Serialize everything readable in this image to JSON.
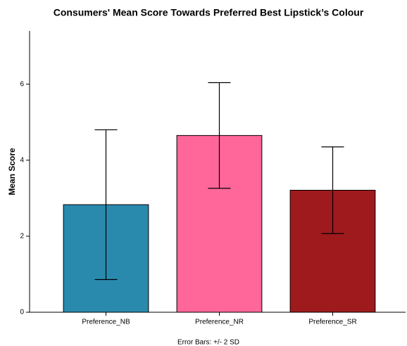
{
  "chart_data": {
    "type": "bar",
    "title": "Consumers' Mean Score Towards Preferred Best Lipstick’s Colour",
    "y_label": "Mean Score",
    "note": "Error Bars: +/- 2 SD",
    "categories": [
      "Preference_NB",
      "Preference_NR",
      "Preference_SR"
    ],
    "values": [
      2.83,
      4.65,
      3.21
    ],
    "errors": [
      1.97,
      1.39,
      1.14
    ],
    "colors": [
      "#2a8aad",
      "#ff6699",
      "#9e1a1d"
    ],
    "ylim": [
      0,
      7.4
    ],
    "yticks": [
      0,
      2,
      4,
      6
    ]
  }
}
